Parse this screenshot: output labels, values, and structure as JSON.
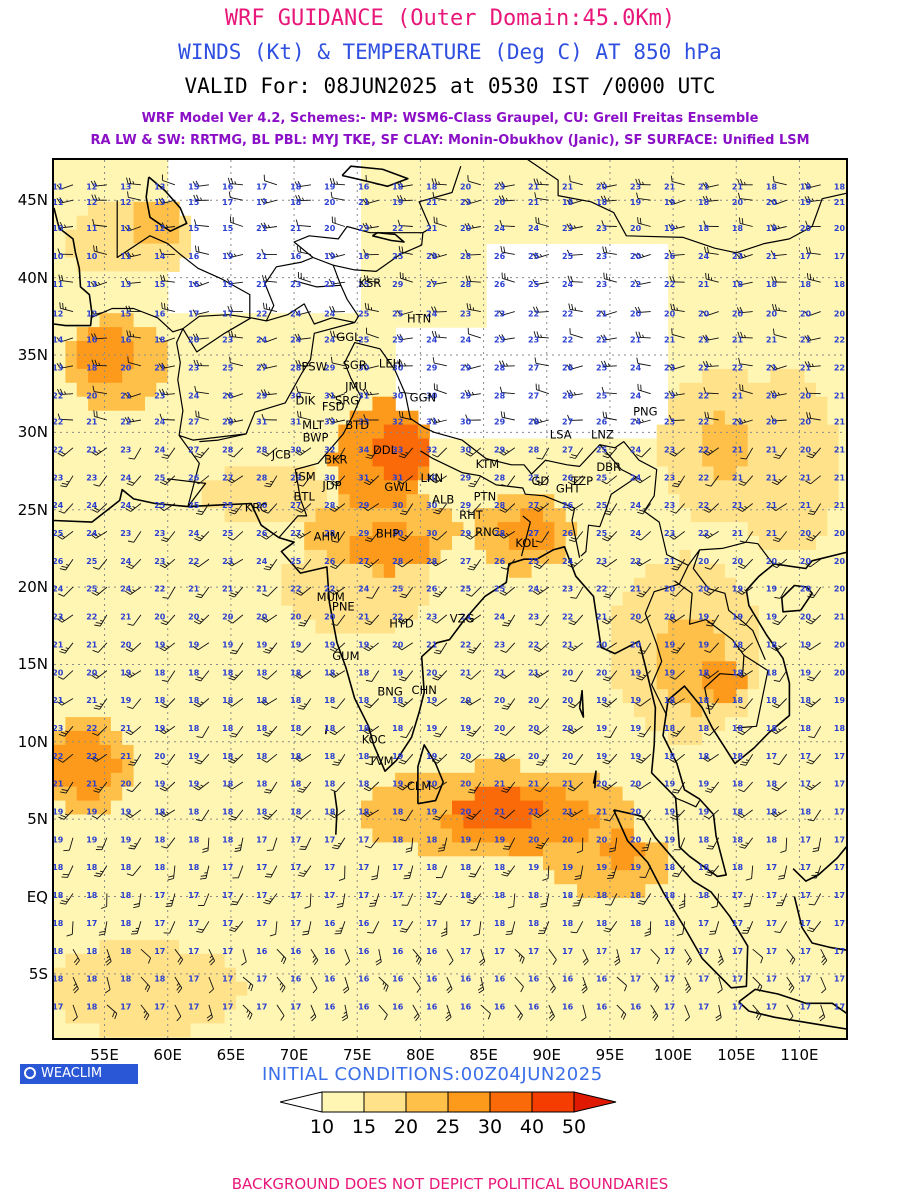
{
  "header": {
    "title": "WRF GUIDANCE (Outer Domain:45.0Km)",
    "subtitle": "WINDS (Kt) & TEMPERATURE (Deg C) AT 850 hPa",
    "valid": "VALID For: 08JUN2025 at 0530 IST /0000 UTC",
    "model_line": "WRF Model Ver 4.2, Schemes:- MP: WSM6-Class Graupel, CU: Grell Freitas Ensemble",
    "physics_line": "RA LW & SW: RRTMG, BL PBL: MYJ TKE, SF CLAY: Monin-Obukhov (Janic), SF SURFACE: Unified LSM"
  },
  "map": {
    "lat_labels": [
      "45N",
      "40N",
      "35N",
      "30N",
      "25N",
      "20N",
      "15N",
      "10N",
      "5N",
      "EQ",
      "5S"
    ],
    "lon_labels": [
      "55E",
      "60E",
      "65E",
      "70E",
      "75E",
      "80E",
      "85E",
      "90E",
      "95E",
      "100E",
      "105E",
      "110E"
    ],
    "stations": [
      {
        "code": "KSR",
        "lon": 76.0,
        "lat": 39.4
      },
      {
        "code": "HTN",
        "lon": 79.9,
        "lat": 37.1
      },
      {
        "code": "GGL",
        "lon": 74.3,
        "lat": 35.9
      },
      {
        "code": "PSW",
        "lon": 71.6,
        "lat": 34.0
      },
      {
        "code": "SGR",
        "lon": 74.8,
        "lat": 34.1
      },
      {
        "code": "LEH",
        "lon": 77.6,
        "lat": 34.2
      },
      {
        "code": "JMU",
        "lon": 74.9,
        "lat": 32.7
      },
      {
        "code": "GGN",
        "lon": 80.2,
        "lat": 32.0
      },
      {
        "code": "DIK",
        "lon": 70.9,
        "lat": 31.8
      },
      {
        "code": "SRG",
        "lon": 74.2,
        "lat": 31.8
      },
      {
        "code": "FSD",
        "lon": 73.1,
        "lat": 31.4
      },
      {
        "code": "MLT",
        "lon": 71.5,
        "lat": 30.2
      },
      {
        "code": "BTD",
        "lon": 75.0,
        "lat": 30.2
      },
      {
        "code": "PNG",
        "lon": 97.8,
        "lat": 31.1
      },
      {
        "code": "BWP",
        "lon": 71.7,
        "lat": 29.4
      },
      {
        "code": "LSA",
        "lon": 91.1,
        "lat": 29.6
      },
      {
        "code": "LNZ",
        "lon": 94.4,
        "lat": 29.6
      },
      {
        "code": "JCB",
        "lon": 69.0,
        "lat": 28.3
      },
      {
        "code": "BKR",
        "lon": 73.3,
        "lat": 28.0
      },
      {
        "code": "DDL",
        "lon": 77.2,
        "lat": 28.6
      },
      {
        "code": "KTM",
        "lon": 85.3,
        "lat": 27.7
      },
      {
        "code": "JSM",
        "lon": 70.9,
        "lat": 26.9
      },
      {
        "code": "LKN",
        "lon": 80.9,
        "lat": 26.8
      },
      {
        "code": "GD",
        "lon": 89.5,
        "lat": 26.6
      },
      {
        "code": "TZP",
        "lon": 92.8,
        "lat": 26.6
      },
      {
        "code": "DBR",
        "lon": 94.9,
        "lat": 27.5
      },
      {
        "code": "JDP",
        "lon": 73.0,
        "lat": 26.3
      },
      {
        "code": "GWL",
        "lon": 78.2,
        "lat": 26.2
      },
      {
        "code": "GHT",
        "lon": 91.7,
        "lat": 26.1
      },
      {
        "code": "ALB",
        "lon": 81.8,
        "lat": 25.4
      },
      {
        "code": "PTN",
        "lon": 85.1,
        "lat": 25.6
      },
      {
        "code": "BTL",
        "lon": 70.8,
        "lat": 25.6
      },
      {
        "code": "KRC",
        "lon": 67.0,
        "lat": 24.9
      },
      {
        "code": "RHT",
        "lon": 84.0,
        "lat": 24.4
      },
      {
        "code": "RNC",
        "lon": 85.3,
        "lat": 23.3
      },
      {
        "code": "AHM",
        "lon": 72.6,
        "lat": 23.0
      },
      {
        "code": "BHP",
        "lon": 77.4,
        "lat": 23.2
      },
      {
        "code": "KOL",
        "lon": 88.4,
        "lat": 22.6
      },
      {
        "code": "MUM",
        "lon": 72.9,
        "lat": 19.1
      },
      {
        "code": "PNE",
        "lon": 73.9,
        "lat": 18.5
      },
      {
        "code": "VZG",
        "lon": 83.3,
        "lat": 17.7
      },
      {
        "code": "HYD",
        "lon": 78.5,
        "lat": 17.4
      },
      {
        "code": "GUM",
        "lon": 74.1,
        "lat": 15.3
      },
      {
        "code": "BNG",
        "lon": 77.6,
        "lat": 13.0
      },
      {
        "code": "CHN",
        "lon": 80.3,
        "lat": 13.1
      },
      {
        "code": "KOC",
        "lon": 76.3,
        "lat": 9.9
      },
      {
        "code": "TVM",
        "lon": 76.9,
        "lat": 8.5
      },
      {
        "code": "CLM",
        "lon": 79.9,
        "lat": 6.9
      }
    ],
    "temperature_labels": {
      "45.7": [
        11,
        12,
        13,
        13,
        15,
        16,
        17,
        18,
        19,
        16,
        18,
        18,
        20,
        23,
        21,
        21,
        20,
        23,
        21,
        21,
        21,
        18,
        18,
        18
      ],
      "44.7": [
        11,
        12,
        12,
        13,
        15,
        17,
        17,
        18,
        20,
        21,
        19,
        21,
        23,
        20,
        21,
        18,
        18,
        19,
        19,
        18,
        20,
        20,
        19,
        21
      ],
      "43.0": [
        10,
        11,
        11,
        12,
        15,
        15,
        21,
        21,
        20,
        23,
        22,
        21,
        20,
        24,
        24,
        23,
        23,
        20,
        19,
        18,
        18,
        18,
        20,
        20
      ],
      "41.2": [
        10,
        10,
        11,
        14,
        16,
        19,
        21,
        16,
        19,
        16,
        25,
        28,
        28,
        26,
        25,
        25,
        23,
        20,
        26,
        24,
        23,
        21,
        17,
        17
      ],
      "39.4": [
        11,
        13,
        13,
        15,
        16,
        19,
        21,
        23,
        23,
        25,
        29,
        27,
        28,
        26,
        25,
        24,
        23,
        22,
        22,
        21,
        18,
        18,
        18,
        18
      ],
      "37.5": [
        12,
        12,
        15,
        16,
        17,
        17,
        22,
        24,
        24,
        25,
        25,
        24,
        23,
        23,
        22,
        22,
        21,
        20,
        20,
        20,
        20,
        20,
        20,
        20
      ],
      "35.8": [
        14,
        16,
        16,
        18,
        20,
        23,
        24,
        24,
        24,
        25,
        25,
        24,
        24,
        23,
        23,
        22,
        22,
        21,
        21,
        21,
        21,
        21,
        21,
        22
      ],
      "34.0": [
        13,
        18,
        20,
        21,
        23,
        25,
        27,
        28,
        29,
        30,
        30,
        29,
        29,
        28,
        27,
        26,
        25,
        24,
        23,
        22,
        22,
        21,
        21,
        22
      ],
      "32.2": [
        22,
        20,
        21,
        23,
        24,
        26,
        29,
        30,
        31,
        31,
        30,
        30,
        29,
        28,
        27,
        26,
        25,
        24,
        23,
        22,
        21,
        20,
        20,
        21
      ],
      "30.5": [
        22,
        21,
        22,
        24,
        27,
        28,
        31,
        31,
        33,
        33,
        32,
        31,
        30,
        29,
        28,
        27,
        26,
        24,
        23,
        22,
        21,
        20,
        20,
        21
      ],
      "28.7": [
        22,
        21,
        23,
        24,
        27,
        28,
        28,
        30,
        32,
        34,
        33,
        32,
        30,
        29,
        28,
        27,
        25,
        24,
        23,
        22,
        21,
        21,
        20,
        21
      ],
      "26.9": [
        23,
        23,
        24,
        25,
        26,
        27,
        28,
        29,
        30,
        31,
        31,
        30,
        29,
        28,
        27,
        26,
        25,
        24,
        23,
        22,
        21,
        21,
        21,
        21
      ],
      "25.1": [
        24,
        24,
        24,
        25,
        25,
        25,
        26,
        27,
        28,
        29,
        30,
        30,
        29,
        28,
        27,
        26,
        25,
        24,
        23,
        22,
        21,
        21,
        21,
        21
      ],
      "23.3": [
        25,
        24,
        23,
        23,
        24,
        25,
        26,
        27,
        28,
        29,
        30,
        30,
        29,
        28,
        27,
        26,
        25,
        24,
        23,
        22,
        21,
        21,
        20,
        20
      ],
      "21.5": [
        26,
        25,
        24,
        23,
        22,
        23,
        24,
        25,
        26,
        27,
        28,
        28,
        27,
        26,
        25,
        24,
        23,
        22,
        21,
        20,
        20,
        20,
        20,
        20
      ],
      "19.7": [
        24,
        25,
        24,
        22,
        21,
        21,
        21,
        22,
        22,
        24,
        25,
        26,
        25,
        25,
        24,
        23,
        22,
        21,
        20,
        20,
        19,
        19,
        20,
        20
      ],
      "17.9": [
        23,
        22,
        21,
        20,
        20,
        20,
        20,
        20,
        20,
        21,
        22,
        23,
        24,
        24,
        23,
        22,
        21,
        20,
        20,
        19,
        19,
        19,
        20,
        21
      ],
      "16.1": [
        21,
        21,
        20,
        19,
        19,
        19,
        19,
        19,
        19,
        19,
        20,
        21,
        22,
        23,
        22,
        21,
        20,
        20,
        19,
        19,
        18,
        18,
        19,
        20
      ],
      "14.3": [
        20,
        20,
        19,
        18,
        18,
        18,
        18,
        18,
        18,
        18,
        19,
        20,
        21,
        21,
        21,
        20,
        20,
        19,
        19,
        18,
        18,
        18,
        19,
        20
      ],
      "12.5": [
        21,
        21,
        19,
        18,
        18,
        18,
        18,
        18,
        18,
        18,
        18,
        19,
        20,
        20,
        20,
        20,
        19,
        19,
        18,
        18,
        18,
        18,
        18,
        19
      ],
      "10.7": [
        23,
        22,
        21,
        19,
        18,
        18,
        18,
        18,
        18,
        18,
        18,
        19,
        19,
        20,
        20,
        20,
        19,
        19,
        18,
        18,
        18,
        18,
        18,
        18
      ],
      "8.9": [
        22,
        22,
        21,
        20,
        19,
        18,
        18,
        18,
        18,
        18,
        19,
        19,
        20,
        20,
        20,
        20,
        19,
        19,
        18,
        18,
        18,
        17,
        17,
        17
      ],
      "7.1": [
        21,
        21,
        20,
        19,
        19,
        18,
        18,
        18,
        18,
        18,
        19,
        20,
        20,
        21,
        21,
        21,
        20,
        20,
        19,
        19,
        18,
        18,
        17,
        17
      ],
      "5.3": [
        19,
        19,
        19,
        18,
        18,
        18,
        18,
        18,
        18,
        18,
        18,
        19,
        20,
        21,
        21,
        21,
        21,
        20,
        19,
        19,
        18,
        18,
        18,
        17
      ],
      "3.5": [
        19,
        19,
        19,
        18,
        18,
        18,
        17,
        17,
        17,
        17,
        18,
        18,
        19,
        19,
        20,
        20,
        20,
        20,
        19,
        18,
        18,
        18,
        17,
        17
      ],
      "1.7": [
        18,
        18,
        18,
        18,
        18,
        17,
        17,
        17,
        17,
        17,
        17,
        18,
        18,
        18,
        19,
        19,
        19,
        19,
        18,
        18,
        18,
        17,
        17,
        17
      ],
      "-0.1": [
        18,
        18,
        18,
        17,
        17,
        17,
        17,
        17,
        17,
        17,
        17,
        17,
        18,
        18,
        18,
        18,
        18,
        18,
        18,
        18,
        17,
        17,
        17,
        17
      ],
      "-1.9": [
        18,
        17,
        18,
        17,
        17,
        17,
        17,
        17,
        16,
        16,
        17,
        17,
        17,
        18,
        18,
        18,
        18,
        18,
        18,
        17,
        17,
        17,
        17,
        17
      ],
      "-3.7": [
        18,
        18,
        18,
        17,
        17,
        17,
        16,
        16,
        16,
        16,
        16,
        16,
        17,
        17,
        17,
        17,
        17,
        17,
        17,
        17,
        17,
        17,
        17,
        17
      ],
      "-5.5": [
        18,
        18,
        18,
        18,
        17,
        17,
        17,
        16,
        16,
        16,
        16,
        16,
        16,
        16,
        16,
        16,
        16,
        17,
        17,
        17,
        17,
        17,
        17,
        17
      ],
      "-7.3": [
        17,
        18,
        17,
        17,
        17,
        17,
        17,
        17,
        16,
        16,
        16,
        16,
        16,
        16,
        16,
        16,
        16,
        16,
        17,
        17,
        17,
        17,
        17,
        17
      ]
    }
  },
  "footer": {
    "logo": "WEACLIM",
    "initial_conditions": "INITIAL CONDITIONS:00Z04JUN2025",
    "disclaimer": "BACKGROUND DOES NOT DEPICT POLITICAL BOUNDARIES"
  },
  "colorbar": {
    "labels": [
      "10",
      "15",
      "20",
      "25",
      "30",
      "40",
      "50"
    ],
    "colors": [
      "#ffffff",
      "#fff6b4",
      "#ffe28a",
      "#ffc04a",
      "#fd9a1c",
      "#fb6a08",
      "#f53d02",
      "#e01a02"
    ]
  },
  "colors": {
    "title": "#e8177a",
    "subtitle": "#2f4fe0",
    "physics_text": "#8a0fc7",
    "temperature_label": "#2a3fd0",
    "station_label": "#000000",
    "coastline": "#000000"
  }
}
